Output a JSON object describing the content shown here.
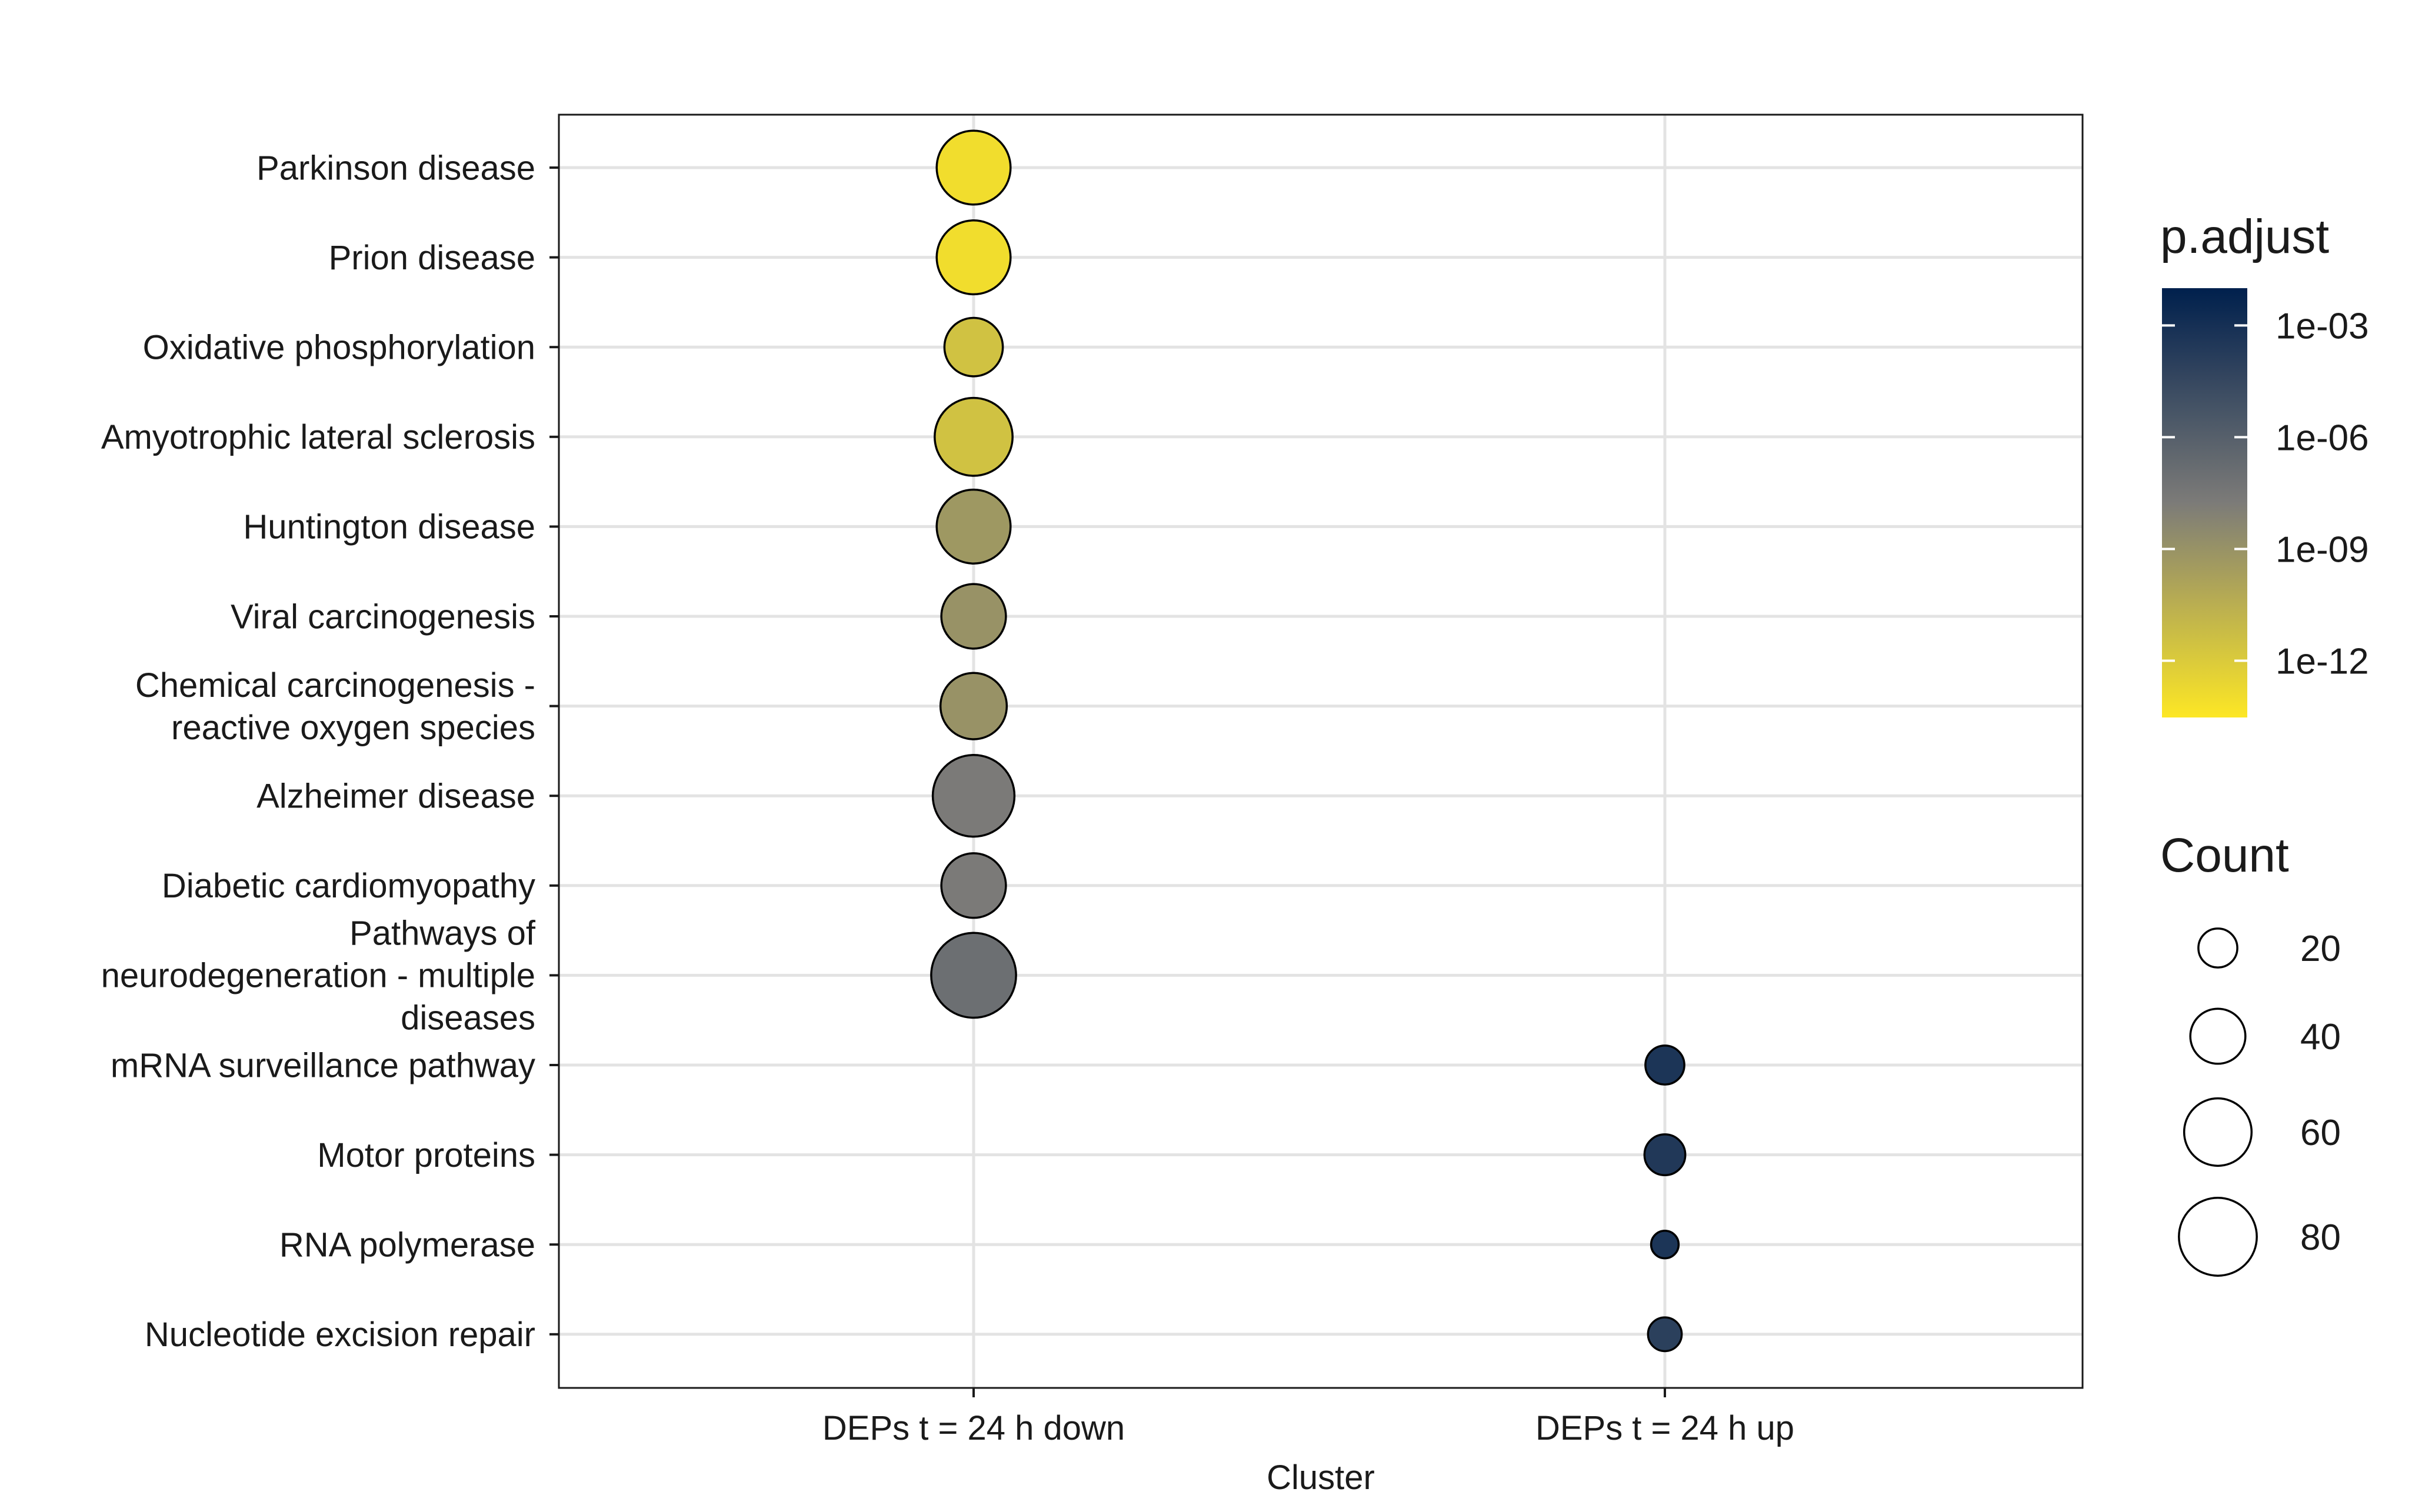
{
  "chart_data": {
    "type": "scatter",
    "subtype": "dot-plot",
    "title": "",
    "xlabel": "Cluster",
    "ylabel": "",
    "x_categories": [
      "DEPs t = 24 h down",
      "DEPs t = 24 h up"
    ],
    "y_categories": [
      "Parkinson disease",
      "Prion disease",
      "Oxidative phosphorylation",
      "Amyotrophic lateral sclerosis",
      "Huntington disease",
      "Viral carcinogenesis",
      "Chemical carcinogenesis -\nreactive oxygen species",
      "Alzheimer disease",
      "Diabetic cardiomyopathy",
      "Pathways of\nneurodegeneration - multiple\ndiseases",
      "mRNA surveillance pathway",
      "Motor proteins",
      "RNA polymerase",
      "Nucleotide excision repair"
    ],
    "points": [
      {
        "x": "DEPs t = 24 h down",
        "y": "Parkinson disease",
        "count": 72,
        "p_adjust": 1e-13
      },
      {
        "x": "DEPs t = 24 h down",
        "y": "Prion disease",
        "count": 72,
        "p_adjust": 1e-13
      },
      {
        "x": "DEPs t = 24 h down",
        "y": "Oxidative phosphorylation",
        "count": 45,
        "p_adjust": 3e-12
      },
      {
        "x": "DEPs t = 24 h down",
        "y": "Amyotrophic lateral sclerosis",
        "count": 80,
        "p_adjust": 3e-12
      },
      {
        "x": "DEPs t = 24 h down",
        "y": "Huntington disease",
        "count": 72,
        "p_adjust": 5e-10
      },
      {
        "x": "DEPs t = 24 h down",
        "y": "Viral carcinogenesis",
        "count": 55,
        "p_adjust": 1e-09
      },
      {
        "x": "DEPs t = 24 h down",
        "y": "Chemical carcinogenesis -\nreactive oxygen species",
        "count": 58,
        "p_adjust": 1e-09
      },
      {
        "x": "DEPs t = 24 h down",
        "y": "Alzheimer disease",
        "count": 88,
        "p_adjust": 2e-08
      },
      {
        "x": "DEPs t = 24 h down",
        "y": "Diabetic cardiomyopathy",
        "count": 55,
        "p_adjust": 2e-08
      },
      {
        "x": "DEPs t = 24 h down",
        "y": "Pathways of\nneurodegeneration - multiple\ndiseases",
        "count": 95,
        "p_adjust": 1e-07
      },
      {
        "x": "DEPs t = 24 h up",
        "y": "mRNA surveillance pathway",
        "count": 20,
        "p_adjust": 0.0005
      },
      {
        "x": "DEPs t = 24 h up",
        "y": "Motor proteins",
        "count": 22,
        "p_adjust": 0.0003
      },
      {
        "x": "DEPs t = 24 h up",
        "y": "RNA polymerase",
        "count": 10,
        "p_adjust": 0.0005
      },
      {
        "x": "DEPs t = 24 h up",
        "y": "Nucleotide excision repair",
        "count": 15,
        "p_adjust": 0.0001
      }
    ],
    "color_legend": {
      "title": "p.adjust",
      "scale": "log10",
      "range": [
        3e-14,
        0.01
      ],
      "ticks": [
        0.001,
        1e-06,
        1e-09,
        1e-12
      ],
      "tick_labels": [
        "1e-03",
        "1e-06",
        "1e-09",
        "1e-12"
      ],
      "low_color": "#fde725",
      "mid_color": "#7c7b78",
      "high_color": "#00204d"
    },
    "size_legend": {
      "title": "Count",
      "values": [
        20,
        40,
        60,
        80
      ],
      "labels": [
        "20",
        "40",
        "60",
        "80"
      ]
    },
    "grid": true,
    "legend_position": "right"
  }
}
